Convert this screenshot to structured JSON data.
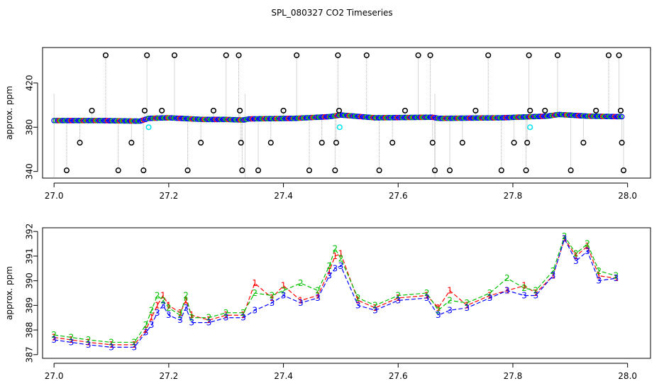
{
  "figure": {
    "title": "SPL_080327  CO2 Timeseries"
  },
  "chart_data": [
    {
      "type": "scatter",
      "panel": "top",
      "title": "",
      "xlabel": "",
      "ylabel": "approx. ppm",
      "xlim": [
        26.98,
        28.04
      ],
      "ylim": [
        334,
        452
      ],
      "xticks": [
        27.0,
        27.2,
        27.4,
        27.6,
        27.8,
        28.0
      ],
      "xtick_labels": [
        "27.0",
        "27.2",
        "27.4",
        "27.6",
        "27.8",
        "28.0"
      ],
      "yticks": [
        340,
        380,
        420
      ],
      "ytick_labels": [
        "340",
        "380",
        "420"
      ],
      "grid": false,
      "legend": "none",
      "baseline": [
        {
          "x": 27.0,
          "y": 386
        },
        {
          "x": 27.08,
          "y": 386
        },
        {
          "x": 27.15,
          "y": 385.5
        },
        {
          "x": 27.165,
          "y": 388
        },
        {
          "x": 27.2,
          "y": 388.5
        },
        {
          "x": 27.26,
          "y": 387
        },
        {
          "x": 27.3,
          "y": 387
        },
        {
          "x": 27.33,
          "y": 386.5
        },
        {
          "x": 27.34,
          "y": 387.5
        },
        {
          "x": 27.42,
          "y": 388
        },
        {
          "x": 27.48,
          "y": 389.5
        },
        {
          "x": 27.5,
          "y": 391
        },
        {
          "x": 27.56,
          "y": 388.5
        },
        {
          "x": 27.66,
          "y": 389
        },
        {
          "x": 27.67,
          "y": 388
        },
        {
          "x": 27.78,
          "y": 388.5
        },
        {
          "x": 27.86,
          "y": 390
        },
        {
          "x": 27.88,
          "y": 391.5
        },
        {
          "x": 27.93,
          "y": 390
        },
        {
          "x": 27.99,
          "y": 389.5
        }
      ],
      "outliers": [
        {
          "x": 27.022,
          "y": 341
        },
        {
          "x": 27.045,
          "y": 366
        },
        {
          "x": 27.066,
          "y": 395
        },
        {
          "x": 27.09,
          "y": 445
        },
        {
          "x": 27.112,
          "y": 341
        },
        {
          "x": 27.135,
          "y": 366
        },
        {
          "x": 27.156,
          "y": 341
        },
        {
          "x": 27.158,
          "y": 395
        },
        {
          "x": 27.162,
          "y": 445
        },
        {
          "x": 27.188,
          "y": 395
        },
        {
          "x": 27.21,
          "y": 445
        },
        {
          "x": 27.233,
          "y": 341
        },
        {
          "x": 27.256,
          "y": 366
        },
        {
          "x": 27.278,
          "y": 395
        },
        {
          "x": 27.3,
          "y": 445
        },
        {
          "x": 27.322,
          "y": 445
        },
        {
          "x": 27.324,
          "y": 395
        },
        {
          "x": 27.326,
          "y": 366
        },
        {
          "x": 27.328,
          "y": 341
        },
        {
          "x": 27.356,
          "y": 341
        },
        {
          "x": 27.378,
          "y": 366
        },
        {
          "x": 27.4,
          "y": 395
        },
        {
          "x": 27.423,
          "y": 445
        },
        {
          "x": 27.445,
          "y": 341
        },
        {
          "x": 27.467,
          "y": 366
        },
        {
          "x": 27.49,
          "y": 341
        },
        {
          "x": 27.492,
          "y": 366
        },
        {
          "x": 27.495,
          "y": 445
        },
        {
          "x": 27.497,
          "y": 395
        },
        {
          "x": 27.545,
          "y": 445
        },
        {
          "x": 27.567,
          "y": 341
        },
        {
          "x": 27.59,
          "y": 366
        },
        {
          "x": 27.612,
          "y": 395
        },
        {
          "x": 27.635,
          "y": 445
        },
        {
          "x": 27.656,
          "y": 445
        },
        {
          "x": 27.66,
          "y": 366
        },
        {
          "x": 27.664,
          "y": 341
        },
        {
          "x": 27.69,
          "y": 341
        },
        {
          "x": 27.712,
          "y": 366
        },
        {
          "x": 27.735,
          "y": 395
        },
        {
          "x": 27.757,
          "y": 445
        },
        {
          "x": 27.78,
          "y": 341
        },
        {
          "x": 27.802,
          "y": 366
        },
        {
          "x": 27.823,
          "y": 341
        },
        {
          "x": 27.825,
          "y": 366
        },
        {
          "x": 27.828,
          "y": 445
        },
        {
          "x": 27.83,
          "y": 395
        },
        {
          "x": 27.856,
          "y": 395
        },
        {
          "x": 27.878,
          "y": 445
        },
        {
          "x": 27.901,
          "y": 341
        },
        {
          "x": 27.923,
          "y": 366
        },
        {
          "x": 27.945,
          "y": 395
        },
        {
          "x": 27.967,
          "y": 445
        },
        {
          "x": 27.985,
          "y": 445
        },
        {
          "x": 27.988,
          "y": 395
        },
        {
          "x": 27.99,
          "y": 366
        },
        {
          "x": 27.993,
          "y": 341
        }
      ],
      "highlights": [
        {
          "x": 27.165,
          "y": 380
        },
        {
          "x": 27.498,
          "y": 380
        },
        {
          "x": 27.83,
          "y": 380
        }
      ],
      "colors": {
        "series_main": "#0000ff",
        "series_alt": "#00c000",
        "series_red": "#ff0000",
        "outlier": "#000000",
        "highlight": "#00e5ee",
        "drop_line": "#b0b0b0"
      }
    },
    {
      "type": "line",
      "panel": "bottom",
      "title": "",
      "xlabel": "",
      "ylabel": "approx. ppm",
      "xlim": [
        26.98,
        28.04
      ],
      "ylim": [
        386.85,
        392.15
      ],
      "xticks": [
        27.0,
        27.2,
        27.4,
        27.6,
        27.8,
        28.0
      ],
      "xtick_labels": [
        "27.0",
        "27.2",
        "27.4",
        "27.6",
        "27.8",
        "28.0"
      ],
      "yticks": [
        387,
        388,
        389,
        390,
        391,
        392
      ],
      "ytick_labels": [
        "387",
        "388",
        "389",
        "390",
        "391",
        "392"
      ],
      "grid": false,
      "legend": "none",
      "series": [
        {
          "marker": "1",
          "color": "#ff0000",
          "points": [
            {
              "x": 27.0,
              "y": 387.7
            },
            {
              "x": 27.03,
              "y": 387.6
            },
            {
              "x": 27.06,
              "y": 387.5
            },
            {
              "x": 27.1,
              "y": 387.4
            },
            {
              "x": 27.14,
              "y": 387.4
            },
            {
              "x": 27.16,
              "y": 388.0
            },
            {
              "x": 27.17,
              "y": 388.5
            },
            {
              "x": 27.18,
              "y": 389.0
            },
            {
              "x": 27.19,
              "y": 389.4
            },
            {
              "x": 27.2,
              "y": 389.0
            },
            {
              "x": 27.22,
              "y": 388.7
            },
            {
              "x": 27.23,
              "y": 389.2
            },
            {
              "x": 27.24,
              "y": 388.6
            },
            {
              "x": 27.27,
              "y": 388.4
            },
            {
              "x": 27.3,
              "y": 388.6
            },
            {
              "x": 27.33,
              "y": 388.6
            },
            {
              "x": 27.35,
              "y": 389.9
            },
            {
              "x": 27.38,
              "y": 389.3
            },
            {
              "x": 27.4,
              "y": 389.8
            },
            {
              "x": 27.43,
              "y": 389.2
            },
            {
              "x": 27.46,
              "y": 389.4
            },
            {
              "x": 27.48,
              "y": 390.4
            },
            {
              "x": 27.49,
              "y": 391.0
            },
            {
              "x": 27.5,
              "y": 391.1
            },
            {
              "x": 27.53,
              "y": 389.2
            },
            {
              "x": 27.56,
              "y": 388.9
            },
            {
              "x": 27.6,
              "y": 389.3
            },
            {
              "x": 27.65,
              "y": 389.4
            },
            {
              "x": 27.67,
              "y": 388.9
            },
            {
              "x": 27.69,
              "y": 389.6
            },
            {
              "x": 27.72,
              "y": 389.0
            },
            {
              "x": 27.76,
              "y": 389.4
            },
            {
              "x": 27.79,
              "y": 389.6
            },
            {
              "x": 27.82,
              "y": 389.8
            },
            {
              "x": 27.84,
              "y": 389.5
            },
            {
              "x": 27.87,
              "y": 390.2
            },
            {
              "x": 27.89,
              "y": 391.7
            },
            {
              "x": 27.91,
              "y": 391.0
            },
            {
              "x": 27.93,
              "y": 391.4
            },
            {
              "x": 27.95,
              "y": 390.2
            },
            {
              "x": 27.98,
              "y": 390.1
            }
          ]
        },
        {
          "marker": "2",
          "color": "#00c000",
          "points": [
            {
              "x": 27.0,
              "y": 387.8
            },
            {
              "x": 27.03,
              "y": 387.7
            },
            {
              "x": 27.06,
              "y": 387.6
            },
            {
              "x": 27.1,
              "y": 387.5
            },
            {
              "x": 27.14,
              "y": 387.5
            },
            {
              "x": 27.16,
              "y": 388.2
            },
            {
              "x": 27.17,
              "y": 388.8
            },
            {
              "x": 27.18,
              "y": 389.4
            },
            {
              "x": 27.19,
              "y": 389.2
            },
            {
              "x": 27.2,
              "y": 388.9
            },
            {
              "x": 27.22,
              "y": 388.6
            },
            {
              "x": 27.23,
              "y": 389.4
            },
            {
              "x": 27.24,
              "y": 388.5
            },
            {
              "x": 27.27,
              "y": 388.5
            },
            {
              "x": 27.3,
              "y": 388.7
            },
            {
              "x": 27.33,
              "y": 388.7
            },
            {
              "x": 27.35,
              "y": 389.5
            },
            {
              "x": 27.38,
              "y": 389.4
            },
            {
              "x": 27.4,
              "y": 389.6
            },
            {
              "x": 27.43,
              "y": 389.9
            },
            {
              "x": 27.46,
              "y": 389.6
            },
            {
              "x": 27.48,
              "y": 390.6
            },
            {
              "x": 27.49,
              "y": 391.3
            },
            {
              "x": 27.5,
              "y": 390.9
            },
            {
              "x": 27.53,
              "y": 389.3
            },
            {
              "x": 27.56,
              "y": 389.0
            },
            {
              "x": 27.6,
              "y": 389.4
            },
            {
              "x": 27.65,
              "y": 389.5
            },
            {
              "x": 27.67,
              "y": 388.8
            },
            {
              "x": 27.69,
              "y": 389.2
            },
            {
              "x": 27.72,
              "y": 389.1
            },
            {
              "x": 27.76,
              "y": 389.5
            },
            {
              "x": 27.79,
              "y": 390.1
            },
            {
              "x": 27.82,
              "y": 389.7
            },
            {
              "x": 27.84,
              "y": 389.6
            },
            {
              "x": 27.87,
              "y": 390.4
            },
            {
              "x": 27.89,
              "y": 391.8
            },
            {
              "x": 27.91,
              "y": 391.1
            },
            {
              "x": 27.93,
              "y": 391.5
            },
            {
              "x": 27.95,
              "y": 390.4
            },
            {
              "x": 27.98,
              "y": 390.2
            }
          ]
        },
        {
          "marker": "3",
          "color": "#0000ff",
          "points": [
            {
              "x": 27.0,
              "y": 387.6
            },
            {
              "x": 27.03,
              "y": 387.5
            },
            {
              "x": 27.06,
              "y": 387.4
            },
            {
              "x": 27.1,
              "y": 387.3
            },
            {
              "x": 27.14,
              "y": 387.3
            },
            {
              "x": 27.16,
              "y": 387.9
            },
            {
              "x": 27.17,
              "y": 388.2
            },
            {
              "x": 27.18,
              "y": 388.7
            },
            {
              "x": 27.19,
              "y": 389.0
            },
            {
              "x": 27.2,
              "y": 388.6
            },
            {
              "x": 27.22,
              "y": 388.4
            },
            {
              "x": 27.23,
              "y": 388.9
            },
            {
              "x": 27.24,
              "y": 388.3
            },
            {
              "x": 27.27,
              "y": 388.3
            },
            {
              "x": 27.3,
              "y": 388.5
            },
            {
              "x": 27.33,
              "y": 388.5
            },
            {
              "x": 27.35,
              "y": 388.8
            },
            {
              "x": 27.38,
              "y": 389.1
            },
            {
              "x": 27.4,
              "y": 389.4
            },
            {
              "x": 27.43,
              "y": 389.1
            },
            {
              "x": 27.46,
              "y": 389.3
            },
            {
              "x": 27.48,
              "y": 390.2
            },
            {
              "x": 27.49,
              "y": 390.5
            },
            {
              "x": 27.5,
              "y": 390.6
            },
            {
              "x": 27.53,
              "y": 389.0
            },
            {
              "x": 27.56,
              "y": 388.8
            },
            {
              "x": 27.6,
              "y": 389.2
            },
            {
              "x": 27.65,
              "y": 389.3
            },
            {
              "x": 27.67,
              "y": 388.6
            },
            {
              "x": 27.69,
              "y": 388.8
            },
            {
              "x": 27.72,
              "y": 388.9
            },
            {
              "x": 27.76,
              "y": 389.3
            },
            {
              "x": 27.79,
              "y": 389.6
            },
            {
              "x": 27.82,
              "y": 389.4
            },
            {
              "x": 27.84,
              "y": 389.4
            },
            {
              "x": 27.87,
              "y": 390.2
            },
            {
              "x": 27.89,
              "y": 391.7
            },
            {
              "x": 27.91,
              "y": 390.8
            },
            {
              "x": 27.93,
              "y": 391.2
            },
            {
              "x": 27.95,
              "y": 390.0
            },
            {
              "x": 27.98,
              "y": 390.1
            }
          ]
        }
      ]
    }
  ]
}
